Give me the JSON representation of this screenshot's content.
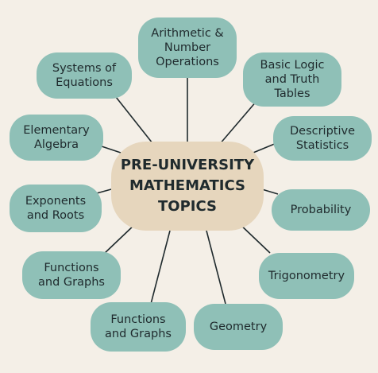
{
  "center": {
    "label": "PRE-UNIVERSITY\nMATHEMATICS\nTOPICS"
  },
  "topics": [
    {
      "label": "Arithmetic &\nNumber\nOperations"
    },
    {
      "label": "Basic Logic\nand Truth\nTables"
    },
    {
      "label": "Descriptive\nStatistics"
    },
    {
      "label": "Probability"
    },
    {
      "label": "Trigonometry"
    },
    {
      "label": "Geometry"
    },
    {
      "label": "Functions\nand Graphs"
    },
    {
      "label": "Functions\nand Graphs"
    },
    {
      "label": "Exponents\nand Roots"
    },
    {
      "label": "Elementary\nAlgebra"
    },
    {
      "label": "Systems of\nEquations"
    }
  ],
  "colors": {
    "background": "#f4efe7",
    "node_fill": "#8fc0b7",
    "center_fill": "#e6d6bd",
    "text": "#1f2a2d",
    "connector": "#1f2a2d"
  }
}
